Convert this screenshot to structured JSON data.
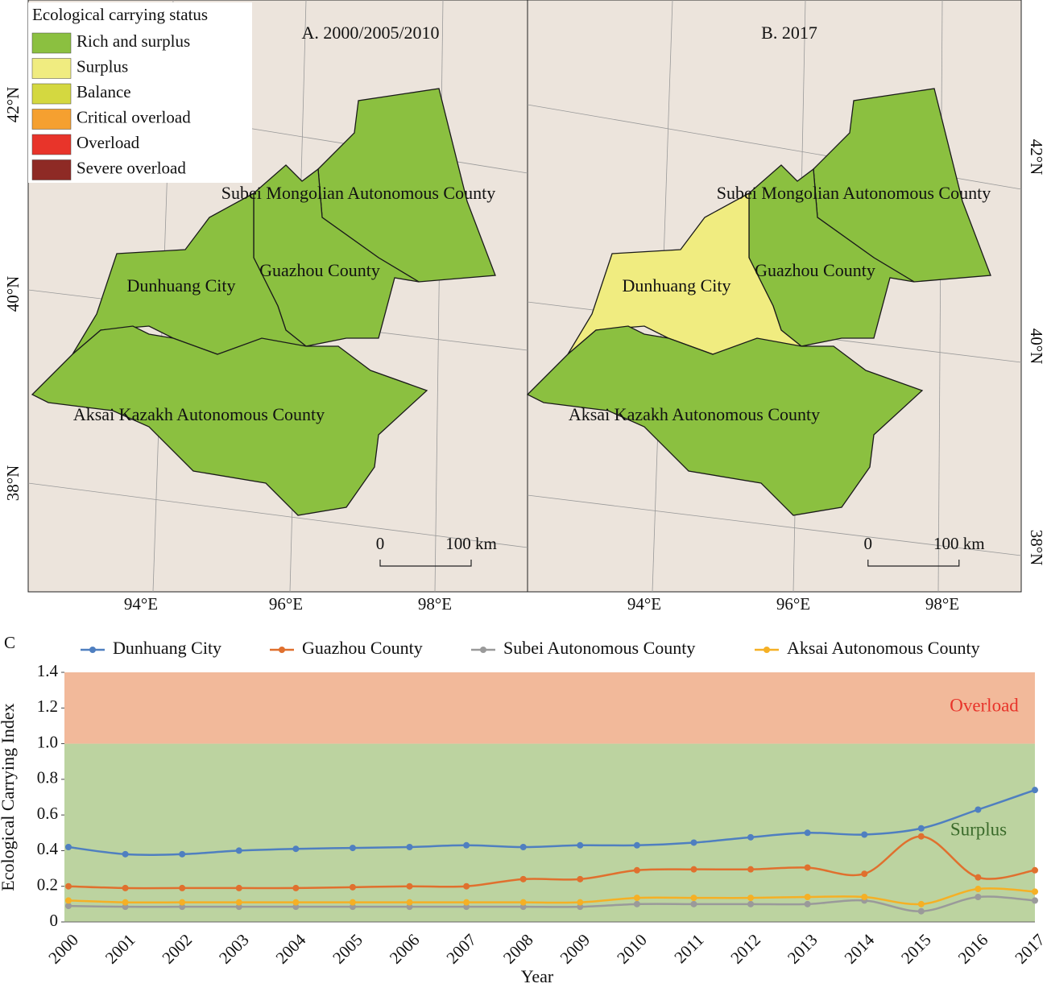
{
  "maps": {
    "legend": {
      "title": "Ecological carrying status",
      "items": [
        {
          "label": "Rich and surplus",
          "color": "#8bc040"
        },
        {
          "label": "Surplus",
          "color": "#f0ec80"
        },
        {
          "label": "Balance",
          "color": "#d4d840"
        },
        {
          "label": "Critical overload",
          "color": "#f5a030"
        },
        {
          "label": "Overload",
          "color": "#e8342a"
        },
        {
          "label": "Severe overload",
          "color": "#8e2a25"
        }
      ]
    },
    "panels": [
      {
        "title": "A. 2000/2005/2010",
        "regions": [
          {
            "name": "Subei Mongolian Autonomous County",
            "status": "Rich and surplus"
          },
          {
            "name": "Guazhou County",
            "status": "Rich and surplus"
          },
          {
            "name": "Dunhuang City",
            "status": "Rich and surplus"
          },
          {
            "name": "Aksai Kazakh Autonomous County",
            "status": "Rich and surplus"
          }
        ],
        "lat_labels": [
          "42°N",
          "40°N",
          "38°N"
        ],
        "lon_labels": [
          "94°E",
          "96°E",
          "98°E"
        ],
        "scale": {
          "zero": "0",
          "length": "100 km"
        }
      },
      {
        "title": "B. 2017",
        "regions": [
          {
            "name": "Subei Mongolian Autonomous County",
            "status": "Rich and surplus"
          },
          {
            "name": "Guazhou County",
            "status": "Rich and surplus"
          },
          {
            "name": "Dunhuang City",
            "status": "Surplus"
          },
          {
            "name": "Aksai Kazakh Autonomous County",
            "status": "Rich and surplus"
          }
        ],
        "lat_labels": [
          "42°N",
          "40°N",
          "38°N"
        ],
        "lon_labels": [
          "94°E",
          "96°E",
          "98°E"
        ],
        "scale": {
          "zero": "0",
          "length": "100 km"
        }
      }
    ]
  },
  "chart_data": {
    "type": "line",
    "panel_label": "C",
    "x_label": "Year",
    "y_label": "Ecological Carrying Index",
    "categories": [
      "2000",
      "2001",
      "2002",
      "2003",
      "2004",
      "2005",
      "2006",
      "2007",
      "2008",
      "2009",
      "2010",
      "2011",
      "2012",
      "2013",
      "2014",
      "2015",
      "2016",
      "2017"
    ],
    "series": [
      {
        "name": "Dunhuang City",
        "color": "#4f7fc0",
        "values": [
          0.42,
          0.38,
          0.38,
          0.4,
          0.41,
          0.415,
          0.42,
          0.43,
          0.42,
          0.43,
          0.43,
          0.445,
          0.475,
          0.5,
          0.49,
          0.525,
          0.63,
          0.74
        ]
      },
      {
        "name": "Guazhou County",
        "color": "#e0702e",
        "values": [
          0.2,
          0.19,
          0.19,
          0.19,
          0.19,
          0.195,
          0.2,
          0.2,
          0.24,
          0.24,
          0.29,
          0.295,
          0.295,
          0.305,
          0.27,
          0.48,
          0.25,
          0.29
        ]
      },
      {
        "name": "Subei Autonomous County",
        "color": "#9a9a9a",
        "values": [
          0.09,
          0.085,
          0.085,
          0.085,
          0.085,
          0.085,
          0.085,
          0.085,
          0.085,
          0.085,
          0.1,
          0.1,
          0.1,
          0.1,
          0.12,
          0.06,
          0.14,
          0.12
        ]
      },
      {
        "name": "Aksai Autonomous County",
        "color": "#f5b025",
        "values": [
          0.12,
          0.11,
          0.11,
          0.11,
          0.11,
          0.11,
          0.11,
          0.11,
          0.11,
          0.11,
          0.135,
          0.135,
          0.135,
          0.14,
          0.14,
          0.1,
          0.185,
          0.17
        ]
      }
    ],
    "ylim": [
      0,
      1.4
    ],
    "yticks": [
      0,
      0.2,
      0.4,
      0.6,
      0.8,
      {
        "value": 1,
        "label": "1.0"
      },
      1.2,
      1.4
    ],
    "bands": [
      {
        "label": "Surplus",
        "from": 0,
        "to": 1,
        "color": "#bcd3a0",
        "text_color": "#3a6a2a"
      },
      {
        "label": "Overload",
        "from": 1,
        "to": 1.4,
        "color": "#f2b99a",
        "text_color": "#e8342a"
      }
    ],
    "legend": "top"
  }
}
